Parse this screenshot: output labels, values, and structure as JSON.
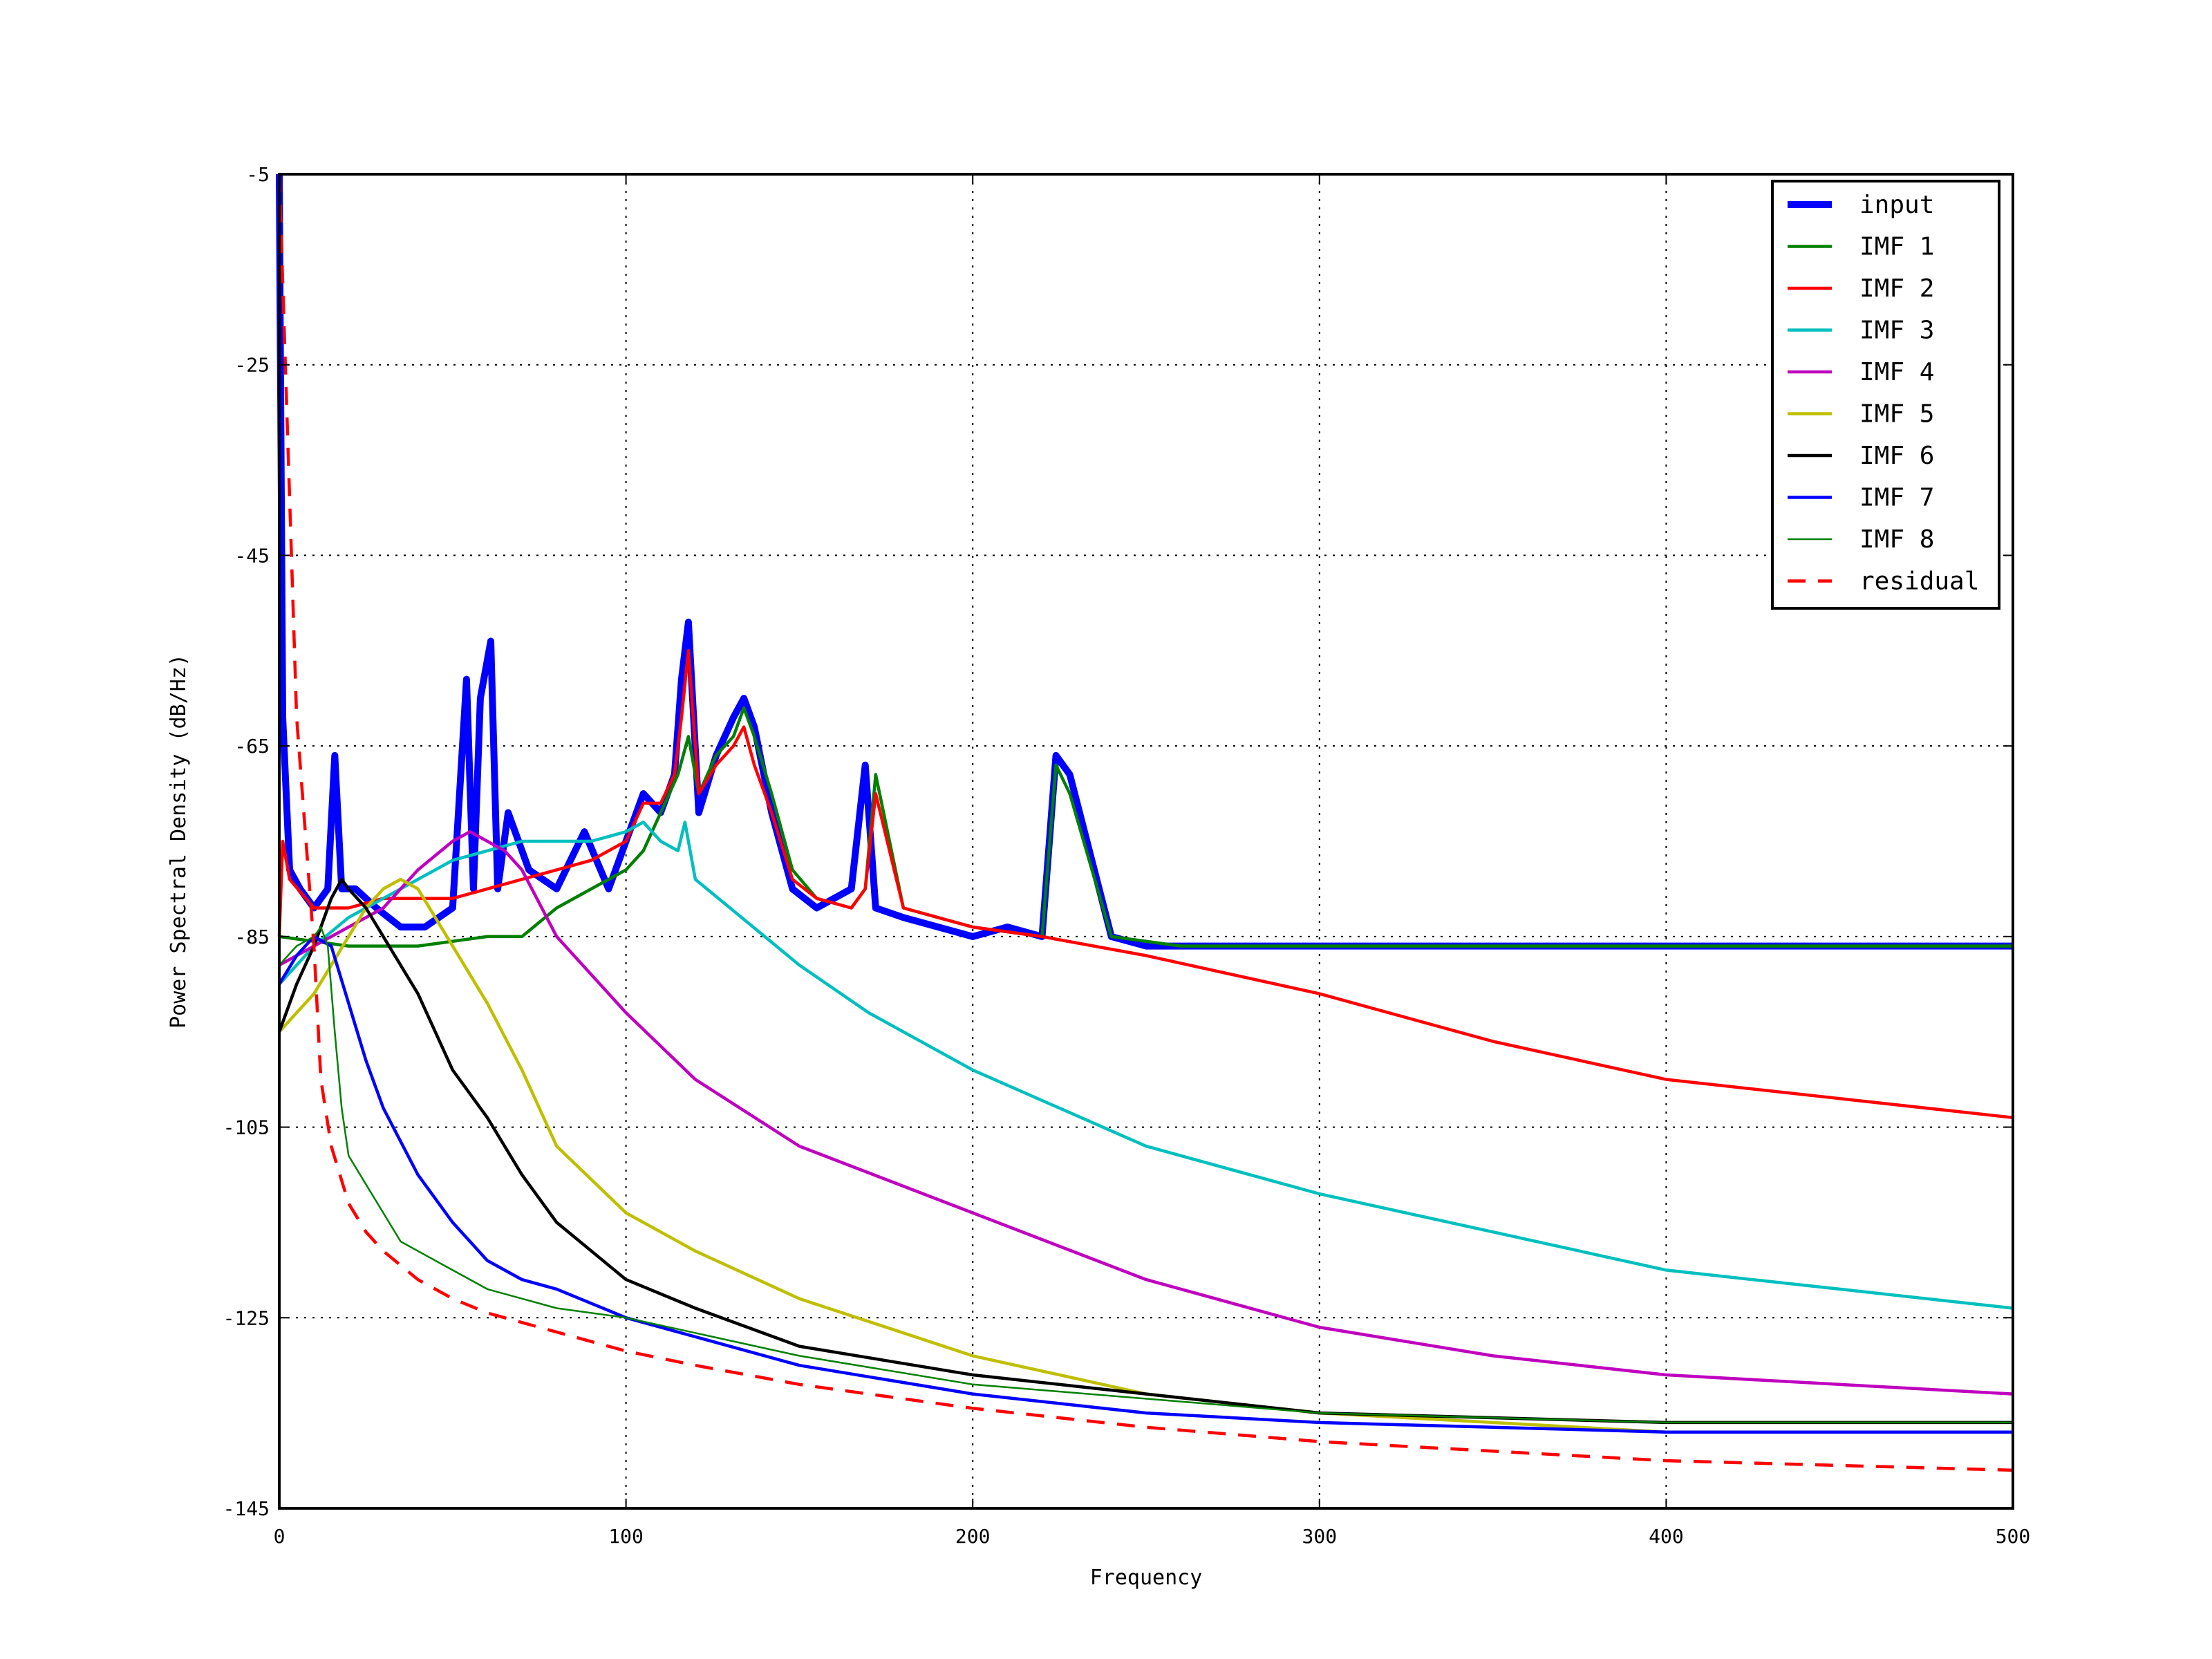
{
  "chart_data": {
    "type": "line",
    "title": "",
    "xlabel": "Frequency",
    "ylabel": "Power Spectral Density (dB/Hz)",
    "xlim": [
      0,
      500
    ],
    "ylim": [
      -145,
      -5
    ],
    "xticks": [
      0,
      100,
      200,
      300,
      400,
      500
    ],
    "yticks": [
      -5,
      -25,
      -45,
      -65,
      -85,
      -105,
      -125,
      -145
    ],
    "xtick_labels": [
      "0",
      "100",
      "200",
      "300",
      "400",
      "500"
    ],
    "ytick_labels": [
      "-5",
      "-25",
      "-45",
      "-65",
      "-85",
      "-105",
      "-125",
      "-145"
    ],
    "grid": true,
    "legend_position": "top-right",
    "series": [
      {
        "name": "input",
        "color": "#0000ff",
        "style": "solid",
        "weight": "heavy",
        "x": [
          0,
          1,
          3,
          6,
          10,
          14,
          16,
          18,
          22,
          28,
          35,
          42,
          50,
          54,
          56,
          58,
          61,
          63,
          66,
          72,
          80,
          88,
          95,
          100,
          105,
          110,
          114,
          116,
          118,
          121,
          126,
          131,
          134,
          137,
          142,
          148,
          155,
          165,
          169,
          172,
          180,
          190,
          200,
          210,
          220,
          224,
          228,
          240,
          250,
          260,
          280,
          300,
          320,
          340,
          360,
          380,
          400,
          420,
          440,
          460,
          480,
          500
        ],
        "values": [
          -5,
          -62,
          -78,
          -80,
          -82,
          -80,
          -66,
          -80,
          -80,
          -82,
          -84,
          -84,
          -82,
          -58,
          -80,
          -60,
          -54,
          -80,
          -72,
          -78,
          -80,
          -74,
          -80,
          -75,
          -70,
          -72,
          -68,
          -58,
          -52,
          -72,
          -66,
          -62,
          -60,
          -63,
          -72,
          -80,
          -82,
          -80,
          -67,
          -82,
          -83,
          -84,
          -85,
          -84,
          -85,
          -66,
          -68,
          -85,
          -86,
          -86,
          -86,
          -86,
          -86,
          -86,
          -86,
          -86,
          -86,
          -86,
          -86,
          -86,
          -86,
          -86
        ]
      },
      {
        "name": "IMF 1",
        "color": "#008000",
        "style": "solid",
        "weight": "normal",
        "x": [
          0,
          20,
          40,
          60,
          70,
          80,
          90,
          100,
          105,
          110,
          115,
          118,
          121,
          126,
          131,
          134,
          137,
          142,
          148,
          155,
          165,
          169,
          172,
          180,
          190,
          200,
          220,
          224,
          228,
          240,
          260,
          280,
          300,
          320,
          340,
          360,
          380,
          400,
          420,
          440,
          460,
          480,
          500
        ],
        "values": [
          -85,
          -86,
          -86,
          -85,
          -85,
          -82,
          -80,
          -78,
          -76,
          -72,
          -68,
          -64,
          -70,
          -66,
          -64,
          -61,
          -64,
          -70,
          -78,
          -81,
          -82,
          -80,
          -68,
          -82,
          -83,
          -84,
          -85,
          -67,
          -70,
          -85,
          -86,
          -86,
          -86,
          -86,
          -86,
          -86,
          -86,
          -86,
          -86,
          -86,
          -86,
          -86,
          -86
        ]
      },
      {
        "name": "IMF 2",
        "color": "#ff0000",
        "style": "solid",
        "weight": "normal",
        "x": [
          0,
          1,
          3,
          10,
          20,
          30,
          40,
          50,
          60,
          70,
          80,
          90,
          100,
          105,
          110,
          114,
          116,
          118,
          121,
          126,
          131,
          134,
          137,
          142,
          148,
          155,
          165,
          169,
          172,
          180,
          190,
          200,
          220,
          250,
          300,
          350,
          400,
          450,
          500
        ],
        "values": [
          -85,
          -75,
          -79,
          -82,
          -82,
          -81,
          -81,
          -81,
          -80,
          -79,
          -78,
          -77,
          -75,
          -71,
          -71,
          -68,
          -62,
          -55,
          -70,
          -67,
          -65,
          -63,
          -67,
          -72,
          -79,
          -81,
          -82,
          -80,
          -70,
          -82,
          -83,
          -84,
          -85,
          -87,
          -91,
          -96,
          -100,
          -102,
          -104
        ]
      },
      {
        "name": "IMF 3",
        "color": "#00bfbf",
        "style": "solid",
        "weight": "normal",
        "x": [
          0,
          10,
          20,
          30,
          40,
          50,
          60,
          70,
          80,
          90,
          100,
          105,
          110,
          115,
          117,
          120,
          130,
          150,
          170,
          200,
          250,
          300,
          350,
          400,
          450,
          500
        ],
        "values": [
          -90,
          -86,
          -83,
          -81,
          -79,
          -77,
          -76,
          -75,
          -75,
          -75,
          -74,
          -73,
          -75,
          -76,
          -73,
          -79,
          -82,
          -88,
          -93,
          -99,
          -107,
          -112,
          -116,
          -120,
          -122,
          -124
        ]
      },
      {
        "name": "IMF 4",
        "color": "#bf00bf",
        "style": "solid",
        "weight": "normal",
        "x": [
          0,
          10,
          20,
          30,
          40,
          50,
          55,
          60,
          65,
          70,
          80,
          100,
          120,
          150,
          200,
          250,
          300,
          350,
          400,
          450,
          500
        ],
        "values": [
          -88,
          -86,
          -84,
          -82,
          -78,
          -75,
          -74,
          -75,
          -76,
          -78,
          -85,
          -93,
          -100,
          -107,
          -114,
          -121,
          -126,
          -129,
          -131,
          -132,
          -133
        ]
      },
      {
        "name": "IMF 5",
        "color": "#bfbf00",
        "style": "solid",
        "weight": "normal",
        "x": [
          0,
          5,
          10,
          15,
          20,
          25,
          30,
          35,
          40,
          45,
          50,
          60,
          70,
          80,
          100,
          120,
          150,
          200,
          250,
          300,
          400,
          500
        ],
        "values": [
          -95,
          -93,
          -91,
          -88,
          -85,
          -82,
          -80,
          -79,
          -80,
          -83,
          -86,
          -92,
          -99,
          -107,
          -114,
          -118,
          -123,
          -129,
          -133,
          -135,
          -137,
          -137
        ]
      },
      {
        "name": "IMF 6",
        "color": "#000000",
        "style": "solid",
        "weight": "normal",
        "x": [
          0,
          5,
          10,
          15,
          18,
          20,
          25,
          30,
          40,
          50,
          60,
          70,
          80,
          100,
          120,
          150,
          200,
          250,
          300,
          400,
          500
        ],
        "values": [
          -95,
          -90,
          -86,
          -81,
          -79,
          -80,
          -82,
          -85,
          -91,
          -99,
          -104,
          -110,
          -115,
          -121,
          -124,
          -128,
          -131,
          -133,
          -135,
          -136,
          -136
        ]
      },
      {
        "name": "IMF 7",
        "color": "#0000ff",
        "style": "solid",
        "weight": "normal",
        "x": [
          0,
          5,
          10,
          15,
          20,
          25,
          30,
          40,
          50,
          60,
          70,
          80,
          100,
          150,
          200,
          250,
          300,
          400,
          500
        ],
        "values": [
          -90,
          -87,
          -85,
          -86,
          -92,
          -98,
          -103,
          -110,
          -115,
          -119,
          -121,
          -122,
          -125,
          -130,
          -133,
          -135,
          -136,
          -137,
          -137
        ]
      },
      {
        "name": "IMF 8",
        "color": "#008000",
        "style": "solid",
        "weight": "thin",
        "x": [
          0,
          5,
          10,
          12,
          14,
          16,
          18,
          20,
          25,
          30,
          35,
          40,
          50,
          60,
          70,
          80,
          100,
          150,
          200,
          300,
          400,
          500
        ],
        "values": [
          -88,
          -86,
          -85,
          -84,
          -86,
          -95,
          -103,
          -108,
          -111,
          -114,
          -117,
          -118,
          -120,
          -122,
          -123,
          -124,
          -125,
          -129,
          -132,
          -135,
          -136,
          -136
        ]
      },
      {
        "name": "residual",
        "color": "#ff0000",
        "style": "dashed",
        "weight": "normal",
        "x": [
          0,
          5,
          10,
          12,
          15,
          20,
          25,
          30,
          40,
          50,
          60,
          70,
          80,
          100,
          120,
          150,
          200,
          250,
          300,
          350,
          400,
          450,
          500
        ],
        "values": [
          -5,
          -62,
          -86,
          -100,
          -107,
          -113,
          -116,
          -118,
          -121,
          -123,
          -124.5,
          -125.5,
          -126.5,
          -128.5,
          -130,
          -132,
          -134.5,
          -136.5,
          -138,
          -139,
          -140,
          -140.5,
          -141
        ]
      }
    ]
  }
}
